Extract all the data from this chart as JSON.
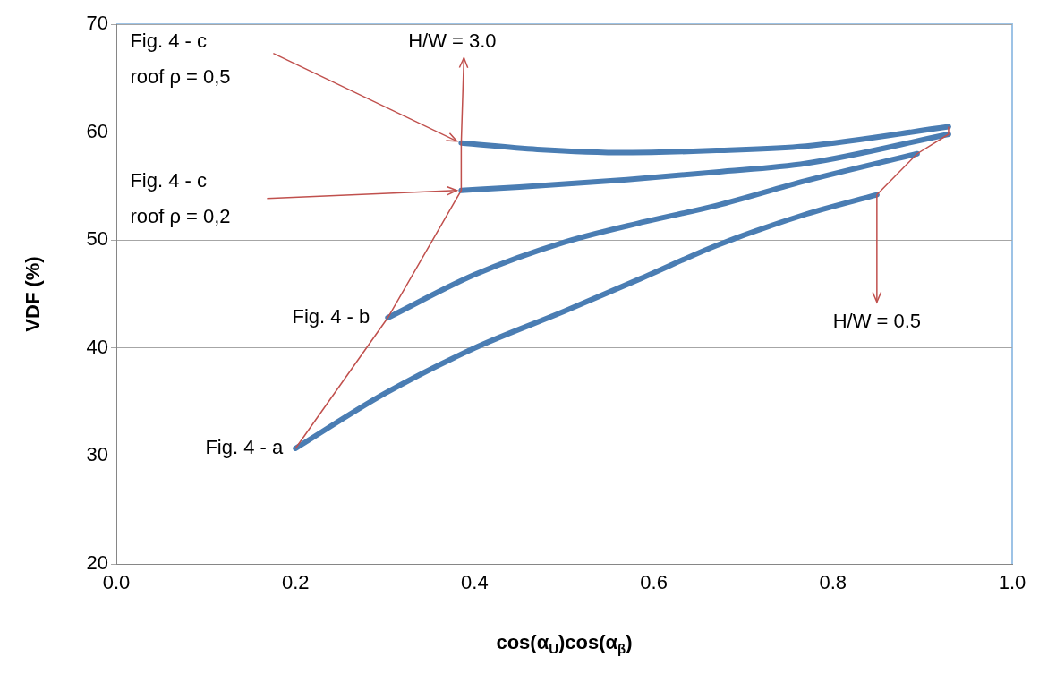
{
  "chart_data": {
    "type": "line",
    "xlabel": "cos(α$_{U}$)cos(α$_{β}$)",
    "ylabel": "VDF (%)",
    "xlim": [
      0,
      1
    ],
    "xticks": [
      {
        "value": 0,
        "label": "0.0"
      },
      {
        "value": 0.2,
        "label": "0.2"
      },
      {
        "value": 0.4,
        "label": "0.4"
      },
      {
        "value": 0.6,
        "label": "0.6"
      },
      {
        "value": 0.8,
        "label": "0.8"
      },
      {
        "value": 1,
        "label": "1.0"
      }
    ],
    "ylim": [
      20,
      70
    ],
    "yticks": [
      20,
      30,
      40,
      50,
      60,
      70
    ],
    "grid": "y",
    "legend": false,
    "marker": "none",
    "line_style": "solid",
    "series": [
      {
        "color": "#4a7db3",
        "x": [
          0.2,
          0.3,
          0.4,
          0.5,
          0.59,
          0.67,
          0.77,
          0.849
        ],
        "values": [
          30.7,
          35.8,
          40.0,
          43.4,
          46.6,
          49.5,
          52.4,
          54.2
        ]
      },
      {
        "color": "#4a7db3",
        "x": [
          0.303,
          0.4,
          0.5,
          0.59,
          0.67,
          0.77,
          0.894
        ],
        "values": [
          42.8,
          46.8,
          49.8,
          51.7,
          53.2,
          55.5,
          58.0
        ]
      },
      {
        "color": "#4a7db3",
        "x": [
          0.385,
          0.45,
          0.57,
          0.67,
          0.77,
          0.929
        ],
        "values": [
          54.6,
          54.9,
          55.6,
          56.3,
          57.1,
          59.8
        ]
      },
      {
        "color": "#4a7db3",
        "x": [
          0.385,
          0.47,
          0.57,
          0.67,
          0.77,
          0.929
        ],
        "values": [
          59.0,
          58.4,
          58.1,
          58.3,
          58.7,
          60.5
        ]
      }
    ],
    "annotations": [
      {
        "text": "Fig. 4 - a",
        "x": 0.2,
        "y": 30.7
      },
      {
        "text": "Fig. 4 - b",
        "x": 0.303,
        "y": 42.8
      },
      "Fig. 4 - c\nroof ρ = 0,5",
      "Fig. 4 - c\nroof ρ = 0,2",
      {
        "text": "H/W = 3.0",
        "x": 0.385,
        "y": 59.0
      },
      {
        "text": "H/W = 0.5",
        "x": 0.849,
        "y": 54.2
      }
    ]
  }
}
